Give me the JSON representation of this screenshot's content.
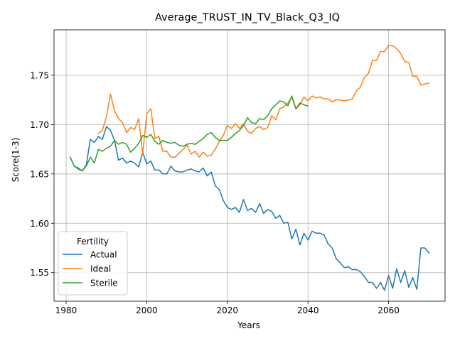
{
  "chart_data": {
    "type": "line",
    "title": "Average_TRUST_IN_TV_Black_Q3_IQ",
    "xlabel": "Years",
    "ylabel": "Score(1-3)",
    "xlim": [
      1977,
      2074
    ],
    "ylim": [
      1.521,
      1.796
    ],
    "xticks": [
      1980,
      2000,
      2020,
      2040,
      2060
    ],
    "yticks": [
      1.55,
      1.6,
      1.65,
      1.7,
      1.75
    ],
    "xtick_labels": [
      "1980",
      "2000",
      "2020",
      "2040",
      "2060"
    ],
    "ytick_labels": [
      "1.55",
      "1.60",
      "1.65",
      "1.70",
      "1.75"
    ],
    "grid": true,
    "legend": {
      "title": "Fertility",
      "placement": "lower-left"
    },
    "series": [
      {
        "name": "Actual",
        "color": "#1f77b4",
        "x": [
          1981,
          1982,
          1983,
          1984,
          1985,
          1986,
          1987,
          1988,
          1989,
          1990,
          1991,
          1992,
          1993,
          1994,
          1995,
          1996,
          1997,
          1998,
          1999,
          2000,
          2001,
          2002,
          2003,
          2004,
          2005,
          2006,
          2007,
          2008,
          2009,
          2010,
          2011,
          2012,
          2013,
          2014,
          2015,
          2016,
          2017,
          2018,
          2019,
          2020,
          2021,
          2022,
          2023,
          2024,
          2025,
          2026,
          2027,
          2028,
          2029,
          2030,
          2031,
          2032,
          2033,
          2034,
          2035,
          2036,
          2037,
          2038,
          2039,
          2040,
          2041,
          2042,
          2043,
          2044,
          2045,
          2046,
          2047,
          2048,
          2049,
          2050,
          2051,
          2052,
          2053,
          2054,
          2055,
          2056,
          2057,
          2058,
          2059,
          2060,
          2061,
          2062,
          2063,
          2064,
          2065,
          2066,
          2067,
          2068,
          2069,
          2070
        ],
        "y": [
          1.667,
          1.658,
          1.656,
          1.653,
          1.659,
          1.685,
          1.682,
          1.688,
          1.685,
          1.698,
          1.694,
          1.684,
          1.664,
          1.666,
          1.661,
          1.663,
          1.661,
          1.657,
          1.672,
          1.66,
          1.663,
          1.654,
          1.654,
          1.65,
          1.65,
          1.658,
          1.653,
          1.652,
          1.652,
          1.654,
          1.655,
          1.653,
          1.652,
          1.656,
          1.648,
          1.652,
          1.638,
          1.634,
          1.623,
          1.616,
          1.614,
          1.616,
          1.611,
          1.624,
          1.613,
          1.615,
          1.611,
          1.62,
          1.61,
          1.614,
          1.612,
          1.605,
          1.608,
          1.6,
          1.601,
          1.584,
          1.594,
          1.578,
          1.59,
          1.583,
          1.592,
          1.59,
          1.59,
          1.588,
          1.579,
          1.575,
          1.564,
          1.56,
          1.555,
          1.556,
          1.553,
          1.553,
          1.551,
          1.546,
          1.54,
          1.54,
          1.534,
          1.54,
          1.532,
          1.547,
          1.534,
          1.554,
          1.54,
          1.552,
          1.535,
          1.545,
          1.533,
          1.575,
          1.575,
          1.57
        ]
      },
      {
        "name": "Ideal",
        "color": "#ff7f0e",
        "x": [
          1988,
          1989,
          1990,
          1991,
          1992,
          1993,
          1994,
          1995,
          1996,
          1997,
          1998,
          1999,
          2000,
          2001,
          2002,
          2003,
          2004,
          2005,
          2006,
          2007,
          2008,
          2009,
          2010,
          2011,
          2012,
          2013,
          2014,
          2015,
          2016,
          2017,
          2018,
          2019,
          2020,
          2021,
          2022,
          2023,
          2024,
          2025,
          2026,
          2027,
          2028,
          2029,
          2030,
          2031,
          2032,
          2033,
          2034,
          2035,
          2036,
          2037,
          2038,
          2039,
          2040,
          2041,
          2042,
          2043,
          2044,
          2045,
          2046,
          2047,
          2048,
          2049,
          2050,
          2051,
          2052,
          2053,
          2054,
          2055,
          2056,
          2057,
          2058,
          2059,
          2060,
          2061,
          2062,
          2063,
          2064,
          2065,
          2066,
          2067,
          2068,
          2069,
          2070
        ],
        "y": [
          1.691,
          1.694,
          1.708,
          1.731,
          1.714,
          1.706,
          1.702,
          1.692,
          1.697,
          1.695,
          1.706,
          1.67,
          1.711,
          1.716,
          1.686,
          1.688,
          1.673,
          1.673,
          1.667,
          1.667,
          1.671,
          1.675,
          1.679,
          1.67,
          1.673,
          1.667,
          1.672,
          1.668,
          1.669,
          1.675,
          1.683,
          1.689,
          1.699,
          1.696,
          1.701,
          1.696,
          1.701,
          1.693,
          1.691,
          1.696,
          1.698,
          1.695,
          1.697,
          1.709,
          1.705,
          1.716,
          1.718,
          1.722,
          1.728,
          1.716,
          1.72,
          1.728,
          1.724,
          1.729,
          1.727,
          1.728,
          1.726,
          1.726,
          1.723,
          1.725,
          1.725,
          1.724,
          1.725,
          1.726,
          1.734,
          1.738,
          1.748,
          1.752,
          1.765,
          1.765,
          1.774,
          1.774,
          1.78,
          1.78,
          1.777,
          1.772,
          1.764,
          1.763,
          1.749,
          1.749,
          1.74,
          1.741,
          1.742
        ]
      },
      {
        "name": "Sterile",
        "color": "#2ca02c",
        "x": [
          1981,
          1982,
          1983,
          1984,
          1985,
          1986,
          1987,
          1988,
          1989,
          1990,
          1991,
          1992,
          1993,
          1994,
          1995,
          1996,
          1997,
          1998,
          1999,
          2000,
          2001,
          2002,
          2003,
          2004,
          2005,
          2006,
          2007,
          2008,
          2009,
          2010,
          2011,
          2012,
          2013,
          2014,
          2015,
          2016,
          2017,
          2018,
          2019,
          2020,
          2021,
          2022,
          2023,
          2024,
          2025,
          2026,
          2027,
          2028,
          2029,
          2030,
          2031,
          2032,
          2033,
          2034,
          2035,
          2036,
          2037,
          2038,
          2039,
          2040
        ],
        "y": [
          1.667,
          1.658,
          1.655,
          1.653,
          1.658,
          1.667,
          1.661,
          1.675,
          1.673,
          1.676,
          1.678,
          1.684,
          1.68,
          1.682,
          1.68,
          1.672,
          1.676,
          1.681,
          1.689,
          1.687,
          1.69,
          1.683,
          1.68,
          1.684,
          1.682,
          1.681,
          1.682,
          1.679,
          1.678,
          1.68,
          1.681,
          1.68,
          1.683,
          1.686,
          1.69,
          1.692,
          1.687,
          1.684,
          1.684,
          1.684,
          1.687,
          1.691,
          1.694,
          1.699,
          1.707,
          1.702,
          1.701,
          1.706,
          1.705,
          1.709,
          1.716,
          1.72,
          1.724,
          1.723,
          1.719,
          1.729,
          1.716,
          1.722,
          1.72,
          1.719
        ]
      }
    ]
  }
}
